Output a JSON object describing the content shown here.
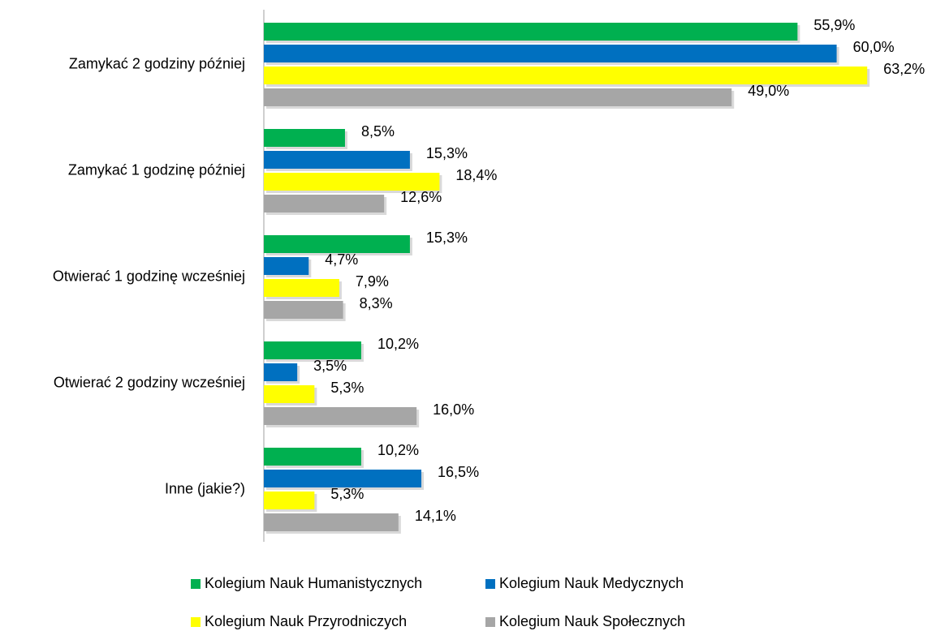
{
  "chart_data": {
    "type": "bar",
    "orientation": "horizontal",
    "categories": [
      "Zamykać 2 godziny później",
      "Zamykać 1 godzinę później",
      "Otwierać 1 godzinę wcześniej",
      "Otwierać 2 godziny wcześniej",
      "Inne (jakie?)"
    ],
    "series": [
      {
        "name": "Kolegium Nauk Humanistycznych",
        "color": "#00b050",
        "values": [
          55.9,
          8.5,
          15.3,
          10.2,
          10.2
        ],
        "value_labels": [
          "55,9%",
          "8,5%",
          "15,3%",
          "10,2%",
          "10,2%"
        ]
      },
      {
        "name": "Kolegium Nauk Medycznych",
        "color": "#0070c0",
        "values": [
          60.0,
          15.3,
          4.7,
          3.5,
          16.5
        ],
        "value_labels": [
          "60,0%",
          "15,3%",
          "4,7%",
          "3,5%",
          "16,5%"
        ]
      },
      {
        "name": "Kolegium Nauk Przyrodniczych",
        "color": "#ffff00",
        "values": [
          63.2,
          18.4,
          7.9,
          5.3,
          5.3
        ],
        "value_labels": [
          "63,2%",
          "18,4%",
          "7,9%",
          "5,3%",
          "5,3%"
        ]
      },
      {
        "name": "Kolegium Nauk Społecznych",
        "color": "#a6a6a6",
        "values": [
          49.0,
          12.6,
          8.3,
          16.0,
          14.1
        ],
        "value_labels": [
          "49,0%",
          "12,6%",
          "8,3%",
          "16,0%",
          "14,1%"
        ]
      }
    ],
    "legend": "bottom"
  }
}
